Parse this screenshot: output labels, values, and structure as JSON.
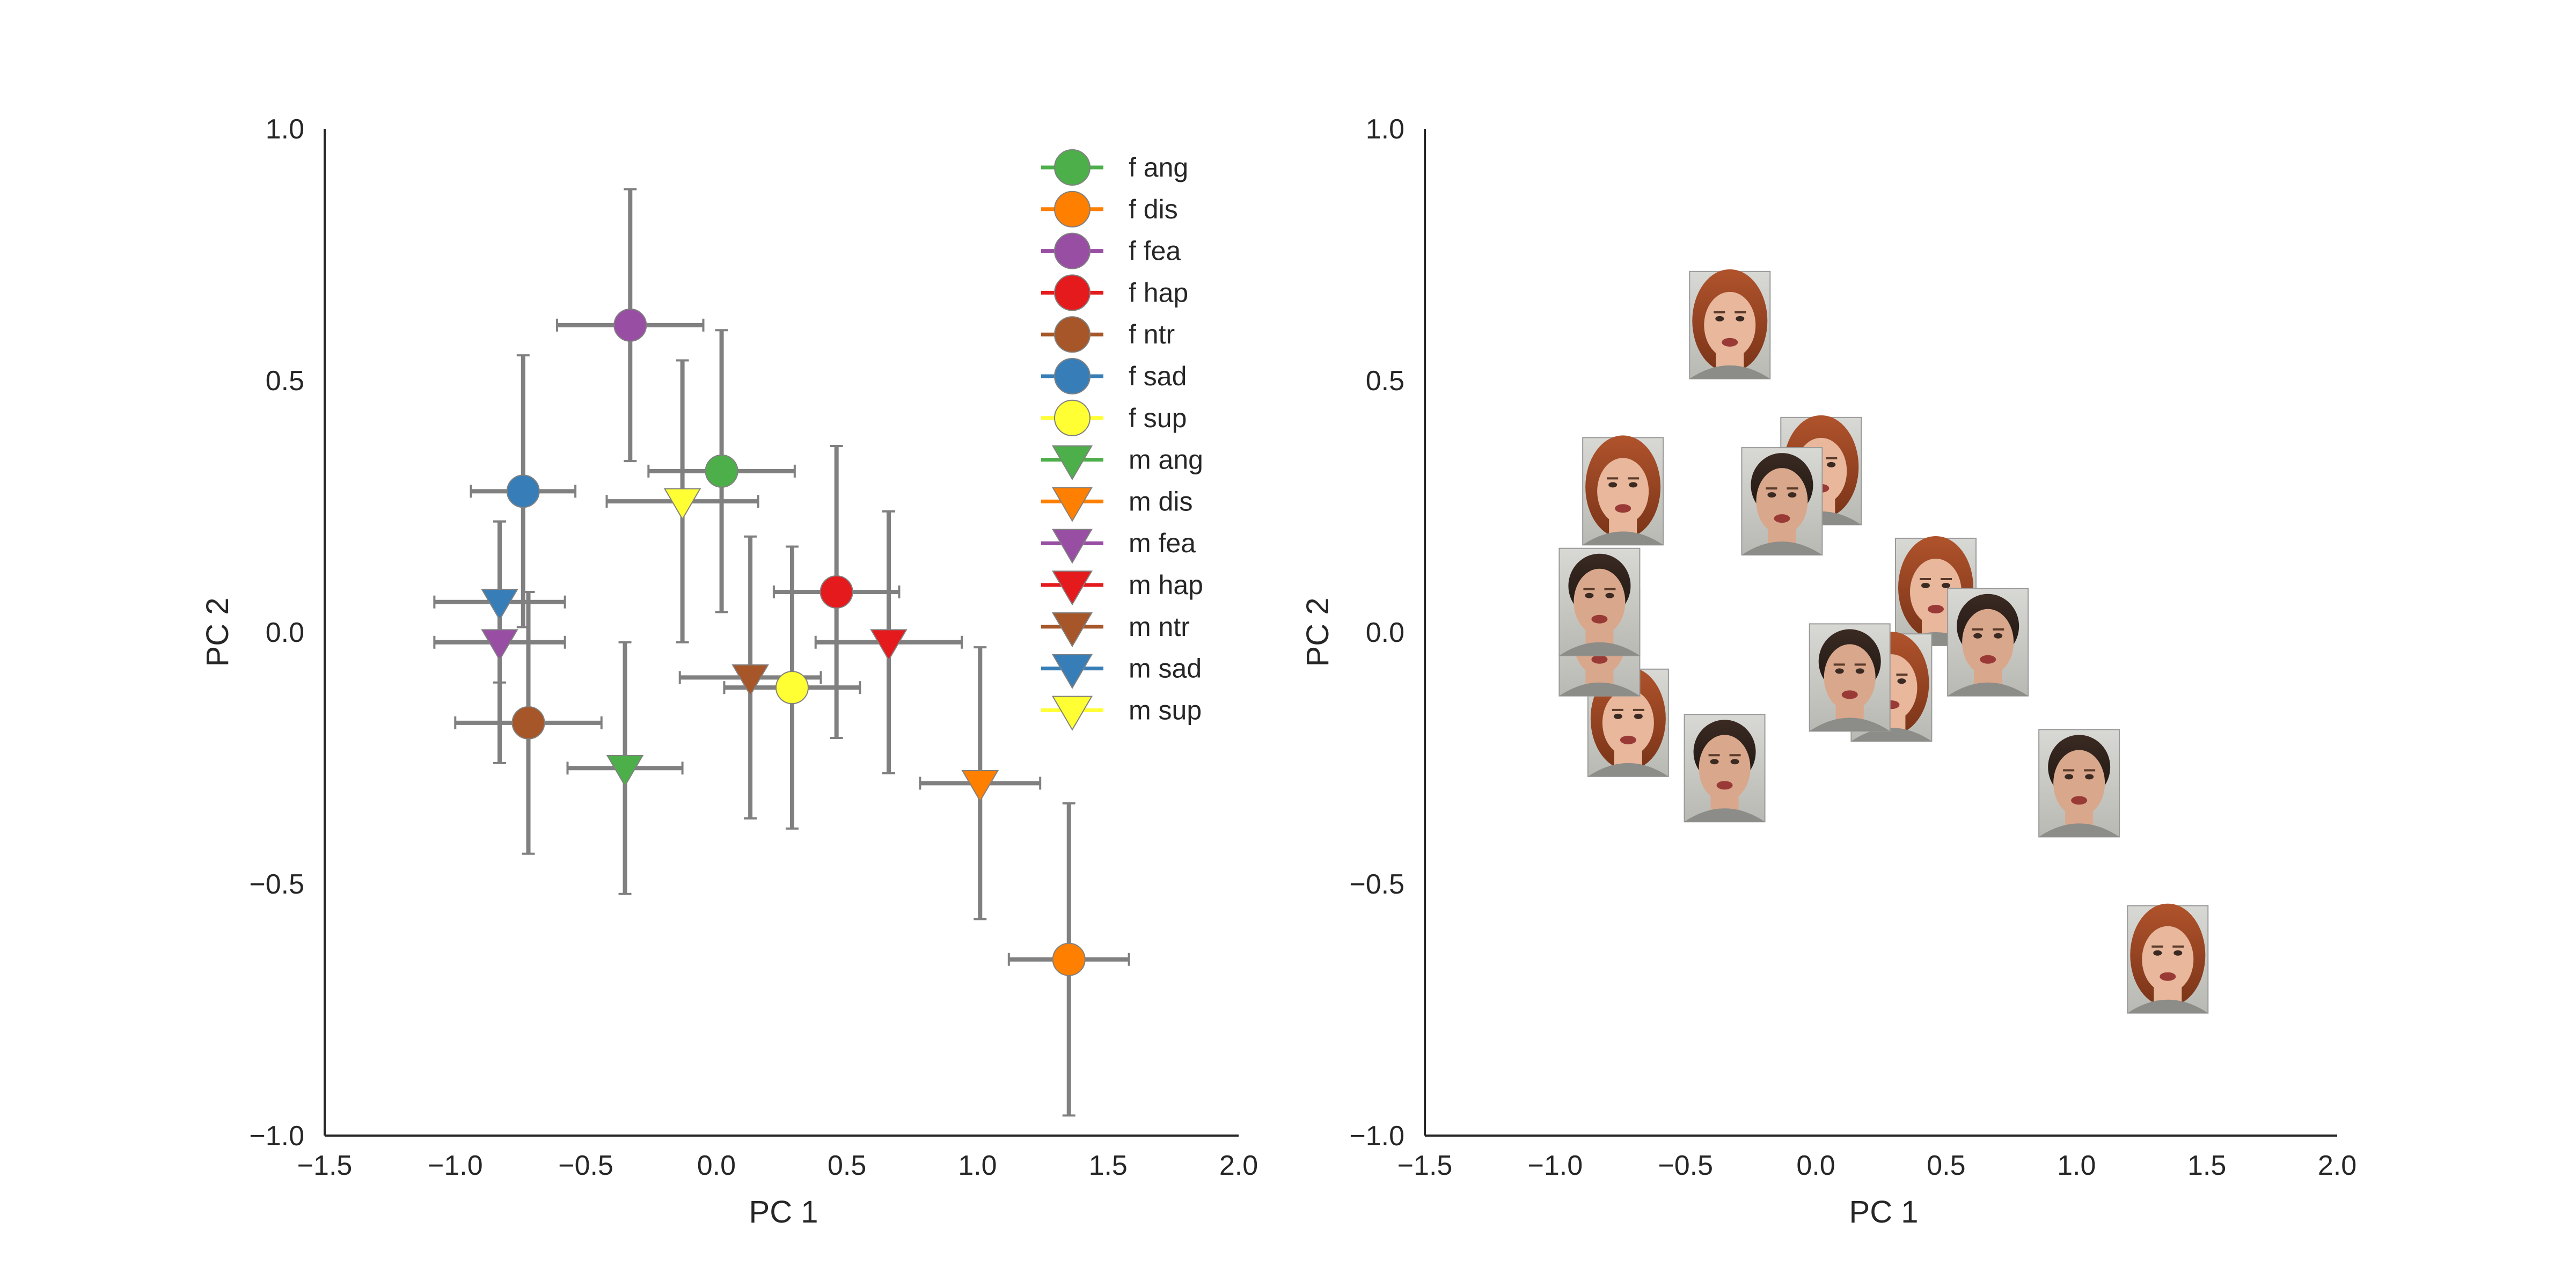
{
  "chart_data": [
    {
      "type": "scatter",
      "xlabel": "PC 1",
      "ylabel": "PC 2",
      "xlim": [
        -1.5,
        2.0
      ],
      "ylim": [
        -1.0,
        1.0
      ],
      "xticks": [
        -1.5,
        -1.0,
        -0.5,
        0.0,
        0.5,
        1.0,
        1.5,
        2.0
      ],
      "yticks": [
        -1.0,
        -0.5,
        0.0,
        0.5,
        1.0
      ],
      "xtick_labels": [
        "−1.5",
        "−1.0",
        "−0.5",
        "0.0",
        "0.5",
        "1.0",
        "1.5",
        "2.0"
      ],
      "ytick_labels": [
        "−1.0",
        "−0.5",
        "0.0",
        "0.5",
        "1.0"
      ],
      "grid": false,
      "legend_position": "top-right",
      "error_bar_color": "#808080",
      "series": [
        {
          "name": "f ang",
          "marker": "circle",
          "color": "#4daf4a",
          "x": 0.02,
          "y": 0.32,
          "xerr": 0.28,
          "yerr": 0.28
        },
        {
          "name": "f dis",
          "marker": "circle",
          "color": "#ff7f00",
          "x": 1.35,
          "y": -0.65,
          "xerr": 0.23,
          "yerr": 0.31
        },
        {
          "name": "f fea",
          "marker": "circle",
          "color": "#984ea3",
          "x": -0.33,
          "y": 0.61,
          "xerr": 0.28,
          "yerr": 0.27
        },
        {
          "name": "f hap",
          "marker": "circle",
          "color": "#e41a1c",
          "x": 0.46,
          "y": 0.08,
          "xerr": 0.24,
          "yerr": 0.29
        },
        {
          "name": "f ntr",
          "marker": "circle",
          "color": "#a65628",
          "x": -0.72,
          "y": -0.18,
          "xerr": 0.28,
          "yerr": 0.26
        },
        {
          "name": "f sad",
          "marker": "circle",
          "color": "#377eb8",
          "x": -0.74,
          "y": 0.28,
          "xerr": 0.2,
          "yerr": 0.27
        },
        {
          "name": "f sup",
          "marker": "circle",
          "color": "#ffff33",
          "x": 0.29,
          "y": -0.11,
          "xerr": 0.26,
          "yerr": 0.28
        },
        {
          "name": "m ang",
          "marker": "triangle-down",
          "color": "#4daf4a",
          "x": -0.35,
          "y": -0.27,
          "xerr": 0.22,
          "yerr": 0.25
        },
        {
          "name": "m dis",
          "marker": "triangle-down",
          "color": "#ff7f00",
          "x": 1.01,
          "y": -0.3,
          "xerr": 0.23,
          "yerr": 0.27
        },
        {
          "name": "m fea",
          "marker": "triangle-down",
          "color": "#984ea3",
          "x": -0.83,
          "y": -0.02,
          "xerr": 0.25,
          "yerr": 0.24
        },
        {
          "name": "m hap",
          "marker": "triangle-down",
          "color": "#e41a1c",
          "x": 0.66,
          "y": -0.02,
          "xerr": 0.28,
          "yerr": 0.26
        },
        {
          "name": "m ntr",
          "marker": "triangle-down",
          "color": "#a65628",
          "x": 0.13,
          "y": -0.09,
          "xerr": 0.27,
          "yerr": 0.28
        },
        {
          "name": "m sad",
          "marker": "triangle-down",
          "color": "#377eb8",
          "x": -0.83,
          "y": 0.06,
          "xerr": 0.25,
          "yerr": 0.16
        },
        {
          "name": "m sup",
          "marker": "triangle-down",
          "color": "#ffff33",
          "x": -0.13,
          "y": 0.26,
          "xerr": 0.29,
          "yerr": 0.28
        }
      ]
    },
    {
      "type": "scatter",
      "xlabel": "PC 1",
      "ylabel": "PC 2",
      "xlim": [
        -1.5,
        2.0
      ],
      "ylim": [
        -1.0,
        1.0
      ],
      "xticks": [
        -1.5,
        -1.0,
        -0.5,
        0.0,
        0.5,
        1.0,
        1.5,
        2.0
      ],
      "yticks": [
        -1.0,
        -0.5,
        0.0,
        0.5,
        1.0
      ],
      "xtick_labels": [
        "−1.5",
        "−1.0",
        "−0.5",
        "0.0",
        "0.5",
        "1.0",
        "1.5",
        "2.0"
      ],
      "ytick_labels": [
        "−1.0",
        "−0.5",
        "0.0",
        "0.5",
        "1.0"
      ],
      "grid": false,
      "marker_style": "face-thumbnail",
      "points": [
        {
          "label": "f ang",
          "sex": "f",
          "x": 0.02,
          "y": 0.32
        },
        {
          "label": "f dis",
          "sex": "f",
          "x": 1.35,
          "y": -0.65
        },
        {
          "label": "f fea",
          "sex": "f",
          "x": -0.33,
          "y": 0.61
        },
        {
          "label": "f hap",
          "sex": "f",
          "x": 0.46,
          "y": 0.08
        },
        {
          "label": "f ntr",
          "sex": "f",
          "x": -0.72,
          "y": -0.18
        },
        {
          "label": "f sad",
          "sex": "f",
          "x": -0.74,
          "y": 0.28
        },
        {
          "label": "f sup",
          "sex": "f",
          "x": 0.29,
          "y": -0.11
        },
        {
          "label": "m ang",
          "sex": "m",
          "x": -0.35,
          "y": -0.27
        },
        {
          "label": "m dis",
          "sex": "m",
          "x": 1.01,
          "y": -0.3
        },
        {
          "label": "m fea",
          "sex": "m",
          "x": -0.83,
          "y": -0.02
        },
        {
          "label": "m hap",
          "sex": "m",
          "x": 0.66,
          "y": -0.02
        },
        {
          "label": "m ntr",
          "sex": "m",
          "x": 0.13,
          "y": -0.09
        },
        {
          "label": "m sad",
          "sex": "m",
          "x": -0.83,
          "y": 0.06
        },
        {
          "label": "m sup",
          "sex": "m",
          "x": -0.13,
          "y": 0.26
        }
      ]
    }
  ]
}
